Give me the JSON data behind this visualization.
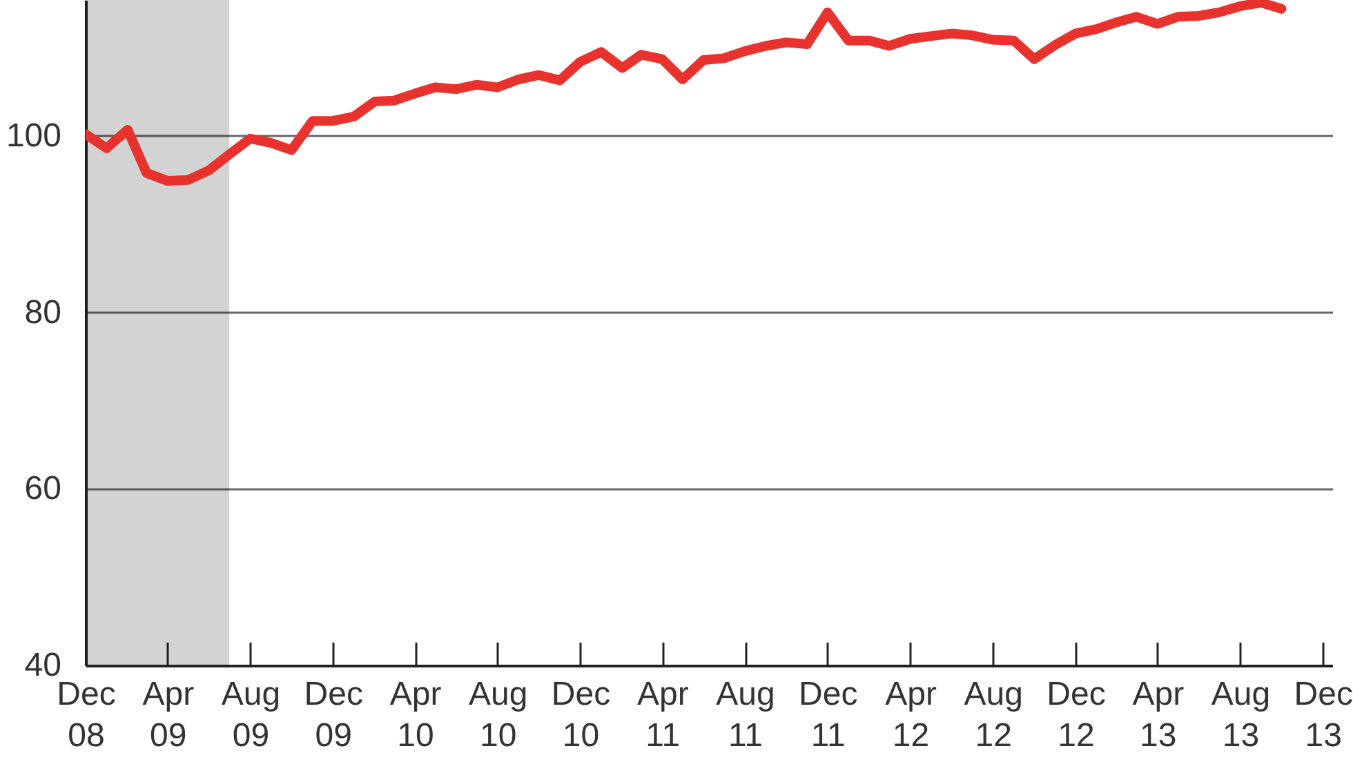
{
  "chart_data": {
    "type": "line",
    "x": [
      "2008-12",
      "2009-01",
      "2009-02",
      "2009-03",
      "2009-04",
      "2009-05",
      "2009-06",
      "2009-07",
      "2009-08",
      "2009-09",
      "2009-10",
      "2009-11",
      "2009-12",
      "2010-01",
      "2010-02",
      "2010-03",
      "2010-04",
      "2010-05",
      "2010-06",
      "2010-07",
      "2010-08",
      "2010-09",
      "2010-10",
      "2010-11",
      "2010-12",
      "2011-01",
      "2011-02",
      "2011-03",
      "2011-04",
      "2011-05",
      "2011-06",
      "2011-07",
      "2011-08",
      "2011-09",
      "2011-10",
      "2011-11",
      "2011-12",
      "2012-01",
      "2012-02",
      "2012-03",
      "2012-04",
      "2012-05",
      "2012-06",
      "2012-07",
      "2012-08",
      "2012-09",
      "2012-10",
      "2012-11",
      "2012-12",
      "2013-01",
      "2013-02",
      "2013-03",
      "2013-04",
      "2013-05",
      "2013-06",
      "2013-07",
      "2013-08",
      "2013-09",
      "2013-10"
    ],
    "series": [
      {
        "color": "#e8322e",
        "values": [
          100.2,
          98.6,
          100.7,
          95.8,
          94.9,
          95.0,
          96.1,
          97.9,
          99.7,
          99.2,
          98.4,
          101.7,
          101.7,
          102.2,
          103.9,
          104.0,
          104.8,
          105.5,
          105.3,
          105.8,
          105.5,
          106.4,
          106.9,
          106.3,
          108.4,
          109.5,
          107.7,
          109.2,
          108.7,
          106.4,
          108.6,
          108.8,
          109.6,
          110.2,
          110.6,
          110.4,
          114.0,
          110.8,
          110.8,
          110.2,
          111.0,
          111.3,
          111.6,
          111.4,
          110.9,
          110.8,
          108.7,
          110.3,
          111.6,
          112.1,
          112.9,
          113.5,
          112.7,
          113.5,
          113.6,
          114.0,
          114.7,
          115.1,
          114.4
        ]
      }
    ],
    "xlim": [
      "2008-12",
      "2013-12-15"
    ],
    "xticks": [
      {
        "value": "2008-12",
        "label": "Dec 08"
      },
      {
        "value": "2009-04",
        "label": "Apr 09"
      },
      {
        "value": "2009-08",
        "label": "Aug 09"
      },
      {
        "value": "2009-12",
        "label": "Dec 09"
      },
      {
        "value": "2010-04",
        "label": "Apr 10"
      },
      {
        "value": "2010-08",
        "label": "Aug 10"
      },
      {
        "value": "2010-12",
        "label": "Dec 10"
      },
      {
        "value": "2011-04",
        "label": "Apr 11"
      },
      {
        "value": "2011-08",
        "label": "Aug 11"
      },
      {
        "value": "2011-12",
        "label": "Dec 11"
      },
      {
        "value": "2012-04",
        "label": "Apr 12"
      },
      {
        "value": "2012-08",
        "label": "Aug 12"
      },
      {
        "value": "2012-12",
        "label": "Dec 12"
      },
      {
        "value": "2013-04",
        "label": "Apr 13"
      },
      {
        "value": "2013-08",
        "label": "Aug 13"
      },
      {
        "value": "2013-12",
        "label": "Dec 13"
      }
    ],
    "ylim": [
      40,
      115.4
    ],
    "yticks": [
      40,
      60,
      80,
      100
    ],
    "bands": [
      {
        "axis": "x",
        "from": "2008-12",
        "to": "2009-07",
        "color": "#d3d3d3"
      }
    ],
    "grid": "y"
  }
}
